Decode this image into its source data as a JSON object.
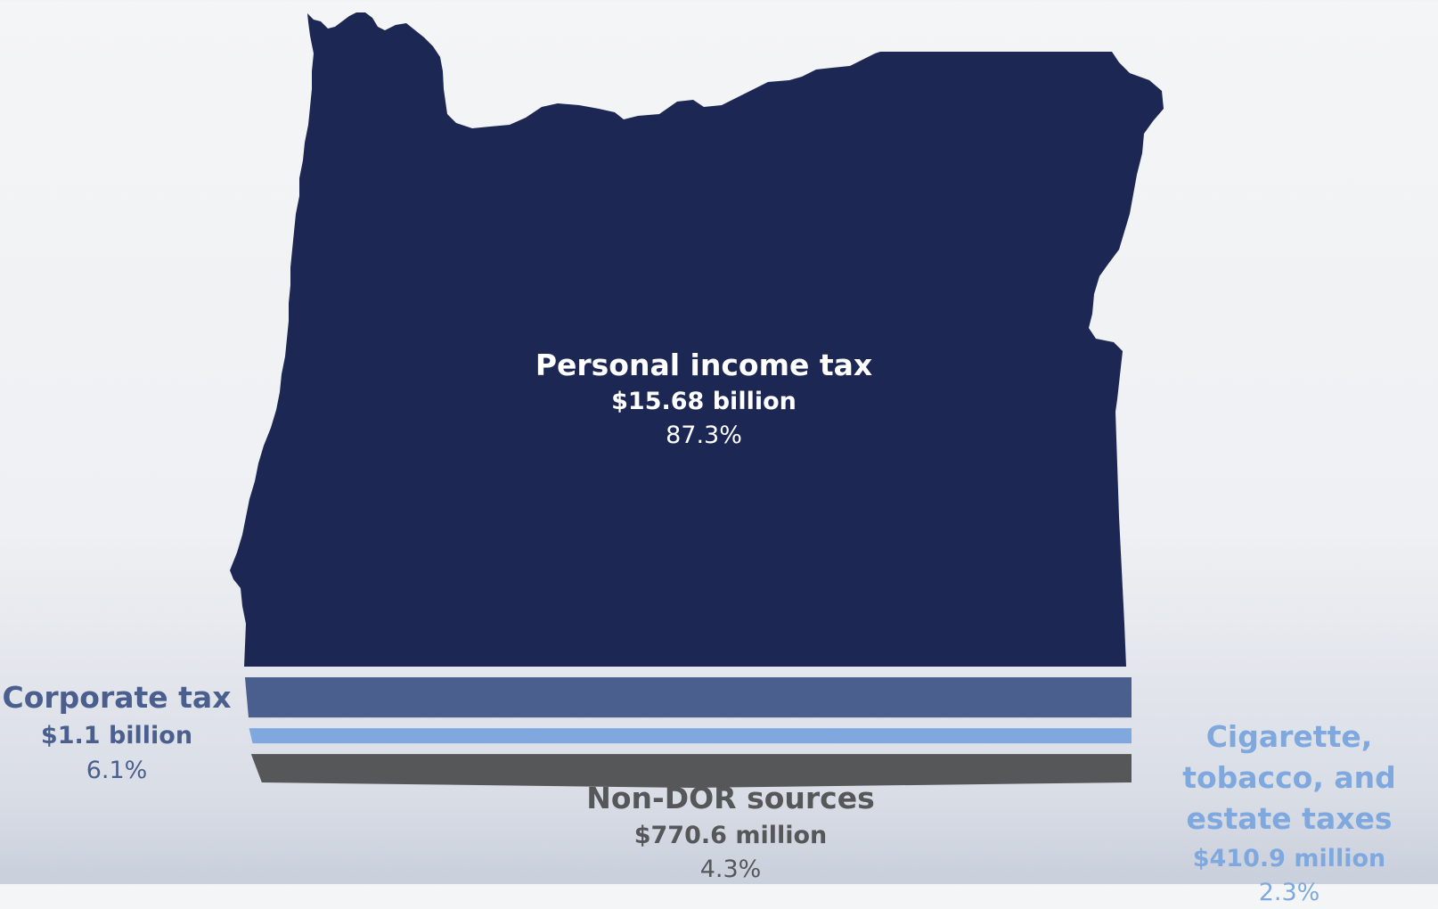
{
  "chart_data": {
    "type": "bar",
    "orientation": "stacked-horizontal-bands",
    "title": "",
    "unit": "share of revenue (%)",
    "series": [
      {
        "name": "Personal income tax",
        "amount_label": "$15.68 billion",
        "percent_label": "87.3%",
        "value": 87.3,
        "color": "#1c2853"
      },
      {
        "name": "Corporate tax",
        "amount_label": "$1.1 billion",
        "percent_label": "6.1%",
        "value": 6.1,
        "color": "#4b5f8e"
      },
      {
        "name": "Cigarette, tobacco, and estate taxes",
        "amount_label": "$410.9 million",
        "percent_label": "2.3%",
        "value": 2.3,
        "color": "#7ea8de"
      },
      {
        "name": "Non-DOR sources",
        "amount_label": "$770.6 million",
        "percent_label": "4.3%",
        "value": 4.3,
        "color": "#555759"
      }
    ]
  }
}
